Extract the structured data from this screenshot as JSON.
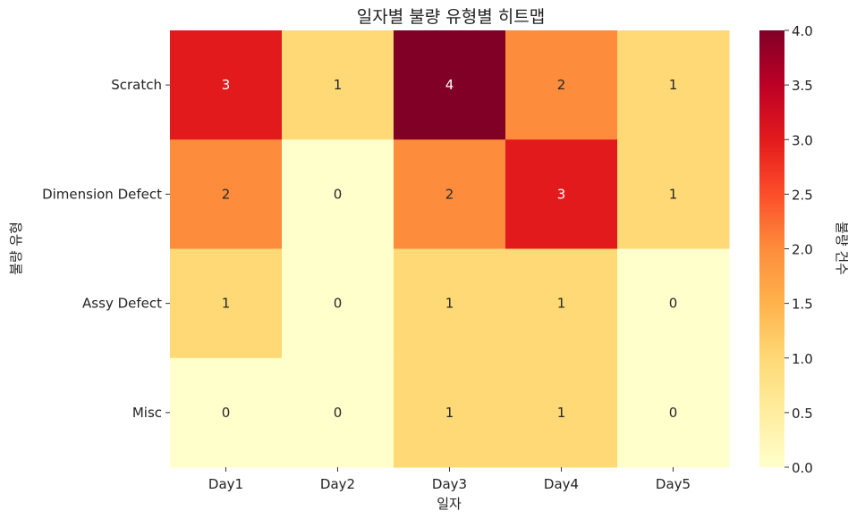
{
  "chart_data": {
    "type": "heatmap",
    "title": "일자별 불량 유형별 히트맵",
    "xlabel": "일자",
    "ylabel": "불량 유형",
    "colorbar_label": "불량 건수",
    "x_categories": [
      "Day1",
      "Day2",
      "Day3",
      "Day4",
      "Day5"
    ],
    "y_categories": [
      "Scratch",
      "Dimension Defect",
      "Assy Defect",
      "Misc"
    ],
    "values": [
      [
        3,
        1,
        4,
        2,
        1
      ],
      [
        2,
        0,
        2,
        3,
        1
      ],
      [
        1,
        0,
        1,
        1,
        0
      ],
      [
        0,
        0,
        1,
        1,
        0
      ]
    ],
    "vmin": 0,
    "vmax": 4,
    "colorbar_ticks": [
      "0.0",
      "0.5",
      "1.0",
      "1.5",
      "2.0",
      "2.5",
      "3.0",
      "3.5",
      "4.0"
    ],
    "colormap": "YlOrRd",
    "colormap_stops": [
      "#ffffcc",
      "#ffeda0",
      "#fed976",
      "#feb24c",
      "#fd8d3c",
      "#fc4e2a",
      "#e31a1c",
      "#bd0026",
      "#800026"
    ],
    "grid": false
  }
}
